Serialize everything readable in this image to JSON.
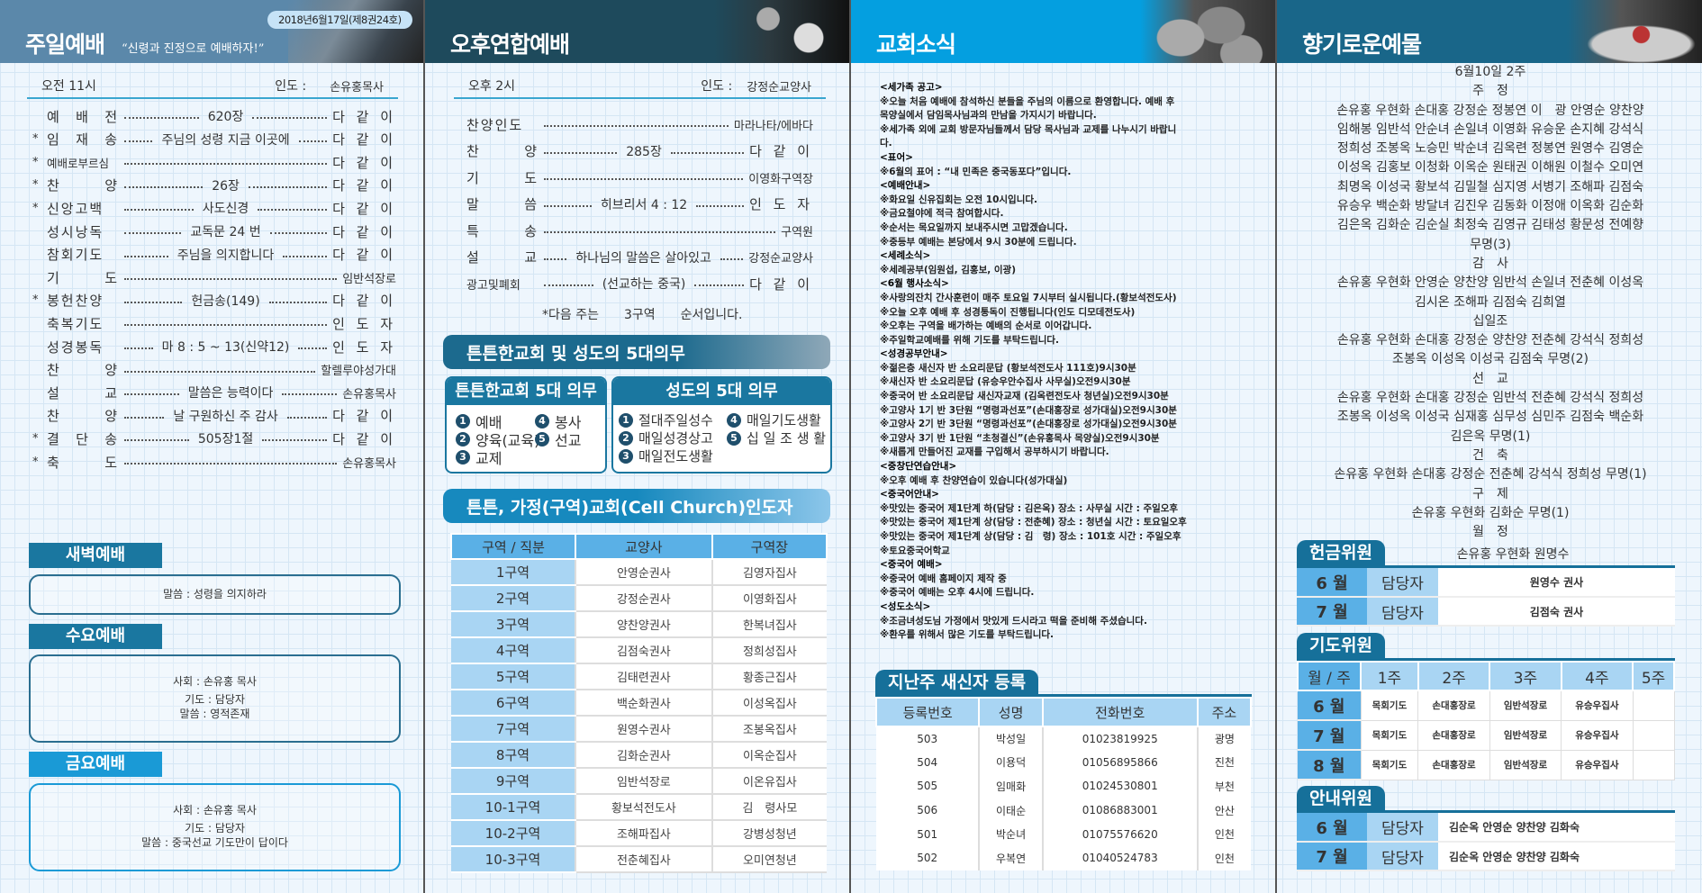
{
  "colors": {
    "header1": "#5b88aa",
    "header2": "#1e4a5c",
    "header3": "#049fe0",
    "header4": "#196689",
    "tab": "#1a77a0",
    "table_header": "#5ab0e6",
    "table_first_col": "#a9d5f3"
  },
  "sunday": {
    "title": "주일예배",
    "motto": "“신령과 진정으로 예배하자!”",
    "date": "2018년6월17일(제8권24호)",
    "time": "오전 11시",
    "leader_label": "인도 :",
    "leader": "손유홍목사",
    "order": [
      {
        "star": "",
        "label": "예 배 전",
        "mid": "620장",
        "right": "다 같 이"
      },
      {
        "star": "*",
        "label": "임 재 송",
        "mid": "주님의 성령 지금 이곳에",
        "right": "다 같 이"
      },
      {
        "star": "*",
        "label": "예배로부르심",
        "mid": "",
        "right": "다 같 이"
      },
      {
        "star": "*",
        "label": "찬 양",
        "mid": "26장",
        "right": "다 같 이"
      },
      {
        "star": "*",
        "label": "신앙고백",
        "mid": "사도신경",
        "right": "다 같 이"
      },
      {
        "star": "",
        "label": "성시낭독",
        "mid": "교독문 24 번",
        "right": "다 같 이"
      },
      {
        "star": "",
        "label": "참회기도",
        "mid": "주님을 의지합니다",
        "right": "다 같 이"
      },
      {
        "star": "",
        "label": "기 도",
        "mid": "",
        "right": "임반석장로"
      },
      {
        "star": "*",
        "label": "봉헌찬양",
        "mid": "헌금송(149)",
        "right": "다 같 이"
      },
      {
        "star": "",
        "label": "축복기도",
        "mid": "",
        "right": "인 도 자"
      },
      {
        "star": "",
        "label": "성경봉독",
        "mid": "마 8 : 5 ~ 13(신약12)",
        "right": "인 도 자"
      },
      {
        "star": "",
        "label": "찬 양",
        "mid": "",
        "right": "할렐루야성가대"
      },
      {
        "star": "",
        "label": "설 교",
        "mid": "말씀은 능력이다",
        "right": "손유홍목사"
      },
      {
        "star": "",
        "label": "찬 양",
        "mid": "날 구원하신 주 감사",
        "right": "다 같 이"
      },
      {
        "star": "*",
        "label": "결 단 송",
        "mid": "505장1절",
        "right": "다 같 이"
      },
      {
        "star": "*",
        "label": "축 도",
        "mid": "",
        "right": "손유홍목사"
      }
    ],
    "dawn": {
      "title": "새벽예배",
      "lines": [
        "말씀 : 성령을 의지하라"
      ]
    },
    "wednesday": {
      "title": "수요예배",
      "lines": [
        "사회 : 손유홍 목사",
        "기도 : 담당자",
        "말씀 : 영적존재"
      ]
    },
    "friday": {
      "title": "금요예배",
      "lines": [
        "사회 : 손유홍 목사",
        "기도 : 담당자",
        "말씀 : 중국선교 기도만이 답이다"
      ]
    }
  },
  "afternoon": {
    "title": "오후연합예배",
    "time": "오후 2시",
    "leader_label": "인도 :",
    "leader": "강정순교양사",
    "order": [
      {
        "label": "찬양인도",
        "mid": "",
        "right": "마라나타/에바다"
      },
      {
        "label": "찬 양",
        "mid": "285장",
        "right": "다 같 이"
      },
      {
        "label": "기 도",
        "mid": "",
        "right": "이영화구역장"
      },
      {
        "label": "말 씀",
        "mid": "히브리서 4 : 12",
        "right": "인 도 자"
      },
      {
        "label": "특 송",
        "mid": "",
        "right": "구역원"
      },
      {
        "label": "설 교",
        "mid": "하나님의 말씀은 살아있고",
        "right": "강정순교양사"
      },
      {
        "label": "광고및폐회",
        "mid": "(선교하는 중국)",
        "right": "다 같 이"
      }
    ],
    "next_prefix": "*다음 주는",
    "next_group": "3구역",
    "next_suffix": "순서입니다.",
    "duties_banner": "튼튼한교회 및 성도의 5대의무",
    "church_duties": {
      "title": "튼튼한교회 5대 의무",
      "items": [
        "예배",
        "양육(교육)",
        "교제",
        "봉사",
        "선교"
      ]
    },
    "member_duties": {
      "title": "성도의 5대 의무",
      "items": [
        "절대주일성수",
        "매일성경상고",
        "매일전도생활",
        "매일기도생활",
        "십 일 조 생 활"
      ]
    },
    "cell_banner": "튼튼, 가정(구역)교회(Cell Church)인도자",
    "cell_table": {
      "headers": [
        "구역 / 직분",
        "교양사",
        "구역장"
      ],
      "rows": [
        [
          "1구역",
          "안영순권사",
          "김영자집사"
        ],
        [
          "2구역",
          "강정순권사",
          "이영화집사"
        ],
        [
          "3구역",
          "양찬양권사",
          "한복녀집사"
        ],
        [
          "4구역",
          "김점숙권사",
          "정희성집사"
        ],
        [
          "5구역",
          "김태련권사",
          "황종근집사"
        ],
        [
          "6구역",
          "백순화권사",
          "이성옥집사"
        ],
        [
          "7구역",
          "원영수권사",
          "조봉옥집사"
        ],
        [
          "8구역",
          "김화순권사",
          "이옥순집사"
        ],
        [
          "9구역",
          "임반석장로",
          "이온유집사"
        ],
        [
          "10-1구역",
          "황보석전도사",
          "김　령사모"
        ],
        [
          "10-2구역",
          "조해파집사",
          "강병성청년"
        ],
        [
          "10-3구역",
          "전춘혜집사",
          "오미연청년"
        ]
      ]
    }
  },
  "news": {
    "title": "교회소식",
    "lines": [
      {
        "h": true,
        "text": "<세가족 공고>"
      },
      {
        "text": "※오늘 처음 예배에 참석하신 분들을 주님의 이름으로 환영합니다. 예배 후"
      },
      {
        "text": "목양실에서 담임목사님과의 만남을 가지시기 바랍니다."
      },
      {
        "text": "※세가족 외에 교회 방문자님들께서 담당 목사님과 교제를 나누시기 바랍니"
      },
      {
        "text": "다."
      },
      {
        "h": true,
        "text": "<표어>"
      },
      {
        "text": "※6월의 표어 : “내 민족은 중국동포다”입니다."
      },
      {
        "h": true,
        "text": "<예배안내>"
      },
      {
        "text": "※화요일 신유집회는 오전 10시입니다."
      },
      {
        "text": "※금요철야에 적극 참여합시다."
      },
      {
        "text": "※순서는 목요일까지 보내주시면 고맙겠습니다."
      },
      {
        "text": "※중등부 예배는 본당에서 9시 30분에 드립니다."
      },
      {
        "h": true,
        "text": "<세례소식>"
      },
      {
        "text": "※세례공부(임원섭, 김홍보, 이광)"
      },
      {
        "h": true,
        "text": "<6월 행사소식>"
      },
      {
        "text": "※사랑의잔치 간사훈련이 매주 토요일 7시부터 실시됩니다.(황보석전도사)"
      },
      {
        "text": "※오늘 오후 예배 후 성경통독이 진행됩니다(인도 디모데전도사)"
      },
      {
        "text": "※오후는 구역을 배가하는 예배의 순서로 이어갑니다."
      },
      {
        "text": "※주일학교예배를 위해 기도를 부탁드립니다."
      },
      {
        "h": true,
        "text": "<성경공부안내>"
      },
      {
        "text": "※젊은층 새신자 반 소요리문답 (황보석전도사 111호)9시30분"
      },
      {
        "text": "※새신자 반 소요리문답 (유승우안수집사 사무실)오전9시30분"
      },
      {
        "text": "※중국어 반 소요리문답 새신자교재 (김옥련전도사 청년실)오전9시30분"
      },
      {
        "text": "※고양사 1기 반 3단원 “명령과선포”(손대홍장로 성가대실)오전9시30분"
      },
      {
        "text": "※고양사 2기 반 3단원 “명령과선포”(손대홍장로 성가대실)오전9시30분"
      },
      {
        "text": "※고양사 3기 반 1단원 “초청결신”(손유홍목사 목양실)오전9시30분"
      },
      {
        "text": "※새롭게 만들어진 교재를 구입해서 공부하시기 바랍니다."
      },
      {
        "h": true,
        "text": "<중창단연습안내>"
      },
      {
        "text": "※오후 예배 후 찬양연습이 있습니다(성가대실)"
      },
      {
        "h": true,
        "text": "<중국어안내>"
      },
      {
        "text": "※맛있는 중국어 제1단계 하(담당 : 김은옥) 장소 : 사무실 시간 : 주일오후"
      },
      {
        "text": "※맛있는 중국어 제1단계 상(담당 : 전춘혜) 장소 : 청년실 시간 : 토요일오후"
      },
      {
        "text": "※맛있는 중국어 제1단계 상(담당 : 김　령) 장소 : 101호 시간 : 주일오후"
      },
      {
        "text": "※토요중국어학교"
      },
      {
        "h": true,
        "text": "<중국어 예배>"
      },
      {
        "text": "※중국어 예배 홈페이지 제작 중"
      },
      {
        "text": "※중국어 예배는 오후 4시에 드립니다."
      },
      {
        "h": true,
        "text": "<성도소식>"
      },
      {
        "text": "※조금녀성도님 가정에서 맛있게 드시라고 떡을 준비해 주셨습니다."
      },
      {
        "text": "※환우를 위해서 많은 기도를 부탁드립니다."
      }
    ],
    "newcomers": {
      "title": "지난주 새신자 등록",
      "headers": [
        "등록번호",
        "성명",
        "전화번호",
        "주소"
      ],
      "rows": [
        [
          "503",
          "박성일",
          "01023819925",
          "광명"
        ],
        [
          "504",
          "이용덕",
          "01056895866",
          "진천"
        ],
        [
          "505",
          "임매화",
          "01024530801",
          "부천"
        ],
        [
          "506",
          "이태순",
          "01086883001",
          "안산"
        ],
        [
          "501",
          "박순녀",
          "01075576620",
          "인천"
        ],
        [
          "502",
          "우복연",
          "01040524783",
          "인천"
        ]
      ]
    }
  },
  "offering": {
    "title": "향기로운예물",
    "lines": [
      {
        "text": "6월10일 2주"
      },
      {
        "h": true,
        "text": "주　정"
      },
      {
        "text": "손유홍 우현화 손대홍 강정순 정봉연 이　광 안영순 양찬양"
      },
      {
        "text": "임해봉 임반석 안순녀 손일녀 이영화 유승운 손지혜 강석식"
      },
      {
        "text": "정희성 조봉옥 노승민 박순녀 김옥련 정봉연 원영수 김영순"
      },
      {
        "text": "이성옥 김홍보 이청화 이옥순 원태권 이해원 이철수 오미연"
      },
      {
        "text": "최명옥 이성국 황보석 김밀철 심지영 서병기 조해파 김점숙"
      },
      {
        "text": "유승우 백순화 방달녀 김진우 김동화 이정애 이옥화 김순화"
      },
      {
        "text": "김은옥 김화순 김순실 최정숙 김영규 김태성 황문성 전예향"
      },
      {
        "text": "무명(3)"
      },
      {
        "h": true,
        "text": "감　사"
      },
      {
        "text": "손유홍 우현화 안영순 양찬양 임반석 손일녀 전춘혜 이성옥"
      },
      {
        "text": "김시온 조해파 김점숙 김희열"
      },
      {
        "h": true,
        "text": "십일조"
      },
      {
        "text": "손유홍 우현화 손대홍 강정순 양찬양 전춘혜 강석식 정희성"
      },
      {
        "text": "조봉옥 이성옥 이성국 김점숙 무명(2)"
      },
      {
        "h": true,
        "text": "선　교"
      },
      {
        "text": "손유홍 우현화 손대홍 강정순 임반석 전춘혜 강석식 정희성"
      },
      {
        "text": "조봉옥 이성옥 이성국 심재홍 심무성 심민주 김점숙 백순화"
      },
      {
        "text": "김은옥 무명(1)"
      },
      {
        "h": true,
        "text": "건　축"
      },
      {
        "text": "손유홍 우현화 손대홍 강정순 전춘혜 강석식 정희성 무명(1)"
      },
      {
        "h": true,
        "text": "구　제"
      },
      {
        "text": "손유홍 우현화 김화순 무명(1)"
      },
      {
        "h": true,
        "text": "월　정"
      },
      {
        "text": "손유홍 우현화 원명수"
      }
    ],
    "offering_committee": {
      "title": "헌금위원",
      "rows": [
        [
          "6 월",
          "담당자",
          "원영수 권사"
        ],
        [
          "7 월",
          "담당자",
          "김점숙 권사"
        ]
      ]
    },
    "prayer_committee": {
      "title": "기도위원",
      "headers": [
        "월 / 주",
        "1주",
        "2주",
        "3주",
        "4주",
        "5주"
      ],
      "rows": [
        [
          "6 월",
          "목회기도",
          "손대홍장로",
          "임반석장로",
          "유승우집사",
          ""
        ],
        [
          "7 월",
          "목회기도",
          "손대홍장로",
          "임반석장로",
          "유승우집사",
          ""
        ],
        [
          "8 월",
          "목회기도",
          "손대홍장로",
          "임반석장로",
          "유승우집사",
          ""
        ]
      ]
    },
    "usher_committee": {
      "title": "안내위원",
      "rows": [
        [
          "6 월",
          "담당자",
          "김순옥 안영순 양찬양 김화숙"
        ],
        [
          "7 월",
          "담당자",
          "김순옥 안영순 양찬양 김화숙"
        ]
      ]
    }
  }
}
